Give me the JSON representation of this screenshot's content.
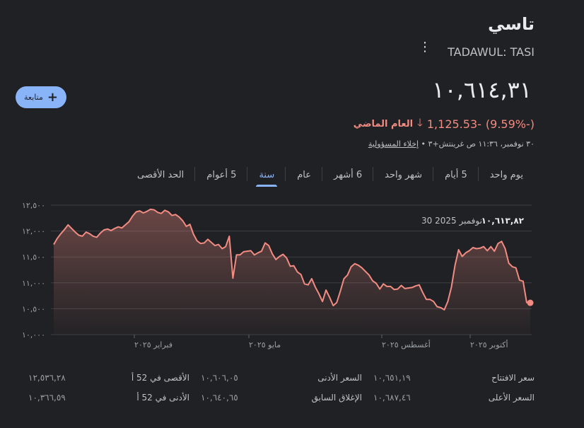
{
  "header": {
    "title": "تاسي",
    "ticker": "TADAWUL: TASI",
    "follow_label": "متابعة"
  },
  "quote": {
    "price": "١٠,٦١٤,٣١",
    "change": "-1,125.53",
    "change_percent": "(-9.59%)",
    "change_period": "العام الماضي",
    "timestamp": "٣٠ نوفمبر، ١١:٣٦ ص غرينتش+٣",
    "separator": "•",
    "disclaimer": "إخلاء المسؤولية"
  },
  "tabs": [
    {
      "label": "يوم واحد",
      "active": false
    },
    {
      "label": "5 أيام",
      "active": false
    },
    {
      "label": "شهر واحد",
      "active": false
    },
    {
      "label": "6 أشهر",
      "active": false
    },
    {
      "label": "عام",
      "active": false
    },
    {
      "label": "سنة",
      "active": true
    },
    {
      "label": "5 أعوام",
      "active": false
    },
    {
      "label": "الحد الأقصى",
      "active": false
    }
  ],
  "tooltip": {
    "value": "١٠,٦١٣,٨٢",
    "date": "30 نوفمبر 2025"
  },
  "colors": {
    "background": "#202124",
    "line": "#f28b82",
    "accent": "#8ab4f8",
    "negative": "#f28b82"
  },
  "icons": {
    "more": "more-vert-icon",
    "follow": "plus-icon",
    "change": "arrow-down-icon"
  },
  "chart_data": {
    "type": "area",
    "ylim": [
      10000,
      12500
    ],
    "y_ticks": [
      10000,
      10500,
      11000,
      11500,
      12000,
      12500
    ],
    "y_tick_labels": [
      "١٠,٠٠٠",
      "١٠,٥٠٠",
      "١١,٠٠٠",
      "١١,٥٠٠",
      "١٢,٠٠٠",
      "١٢,٥٠٠"
    ],
    "x_tick_labels": [
      "فبراير ٢٠٢٥",
      "مايو ٢٠٢٥",
      "أغسطس ٢٠٢٥",
      "أكتوبر ٢٠٢٥"
    ],
    "grid": true,
    "series": [
      {
        "values": [
          11740,
          11860,
          11950,
          12030,
          12120,
          12050,
          11980,
          11920,
          11900,
          11980,
          11950,
          11900,
          11880,
          11960,
          12020,
          12040,
          12010,
          12050,
          12080,
          12060,
          12120,
          12180,
          12290,
          12370,
          12390,
          12350,
          12380,
          12420,
          12410,
          12360,
          12340,
          12400,
          12370,
          12300,
          12320,
          12270,
          12200,
          12090,
          12130,
          11940,
          11810,
          11760,
          11770,
          11840,
          11780,
          11720,
          11740,
          11660,
          11700,
          11900,
          11090,
          11540,
          11540,
          11600,
          11610,
          11620,
          11540,
          11580,
          11610,
          11770,
          11720,
          11560,
          11450,
          11510,
          11550,
          11480,
          11320,
          11330,
          11210,
          11160,
          10980,
          10960,
          11080,
          10920,
          10790,
          10640,
          10860,
          10720,
          10560,
          10620,
          10840,
          11080,
          11150,
          11310,
          11370,
          11340,
          11290,
          11220,
          11150,
          11040,
          10990,
          10880,
          10980,
          10930,
          10930,
          10870,
          10880,
          10950,
          10890,
          10900,
          10910,
          10940,
          10960,
          10810,
          10680,
          10680,
          10640,
          10540,
          10520,
          10480,
          10640,
          10920,
          11340,
          11640,
          11510,
          11580,
          11620,
          11680,
          11660,
          11670,
          11700,
          11620,
          11700,
          11610,
          11760,
          11800,
          11660,
          11380,
          11310,
          11290,
          11050,
          11030,
          10620,
          10614
        ]
      }
    ]
  },
  "stats": [
    [
      {
        "label": "سعر الافتتاح",
        "value": "١٠,٦٥١,١٩"
      },
      {
        "label": "السعر الأدنى",
        "value": "١٠,٦٠٦,٠٥"
      },
      {
        "label": "الأقصى في 52 أ",
        "value": "١٢,٥٣٦,٢٨"
      }
    ],
    [
      {
        "label": "السعر الأعلى",
        "value": "١٠,٦٨٧,٤٦"
      },
      {
        "label": "الإغلاق السابق",
        "value": "١٠,٦٤٠,٦٥"
      },
      {
        "label": "الأدنى في 52 أ",
        "value": "١٠,٣٦٦,٥٩"
      }
    ]
  ]
}
